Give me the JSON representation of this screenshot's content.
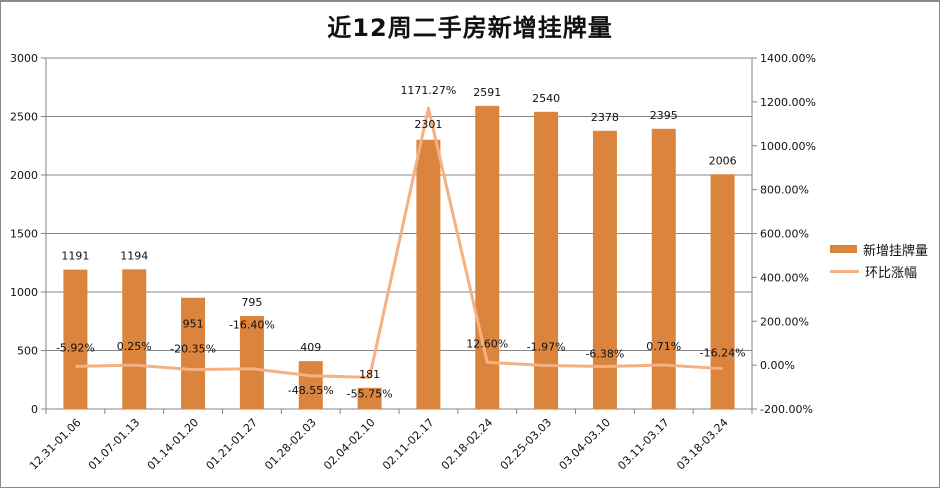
{
  "title": "近12周二手房新增挂牌量",
  "colors": {
    "bar": "#db843d",
    "line": "#f4b183",
    "grid": "#868686",
    "axis": "#868686",
    "text": "#111111"
  },
  "legend": {
    "bar_label": "新增挂牌量",
    "line_label": "环比涨幅"
  },
  "chart_data": {
    "type": "bar+line",
    "title": "近12周二手房新增挂牌量",
    "categories": [
      "12.31-01.06",
      "01.07-01.13",
      "01.14-01.20",
      "01.21-01.27",
      "01.28-02.03",
      "02.04-02.10",
      "02.11-02.17",
      "02.18-02.24",
      "02.25-03.03",
      "03.04-03.10",
      "03.11-03.17",
      "03.18-03.24"
    ],
    "series": [
      {
        "name": "新增挂牌量",
        "type": "bar",
        "axis": "left",
        "values": [
          1191,
          1194,
          951,
          795,
          409,
          181,
          2301,
          2591,
          2540,
          2378,
          2395,
          2006
        ],
        "labels": [
          "1191",
          "1194",
          "951",
          "795",
          "409",
          "181",
          "2301",
          "2591",
          "2540",
          "2378",
          "2395",
          "2006"
        ]
      },
      {
        "name": "环比涨幅",
        "type": "line",
        "axis": "right",
        "values": [
          -5.92,
          0.25,
          -20.35,
          -16.4,
          -48.55,
          -55.75,
          1171.27,
          12.6,
          -1.97,
          -6.38,
          0.71,
          -16.24
        ],
        "labels": [
          "-5.92%",
          "0.25%",
          "-20.35%",
          "-16.40%",
          "-48.55%",
          "-55.75%",
          "1171.27%",
          "12.60%",
          "-1.97%",
          "-6.38%",
          "0.71%",
          "-16.24%"
        ]
      }
    ],
    "y_left": {
      "min": 0,
      "max": 3000,
      "ticks": [
        "0",
        "500",
        "1000",
        "1500",
        "2000",
        "2500",
        "3000"
      ]
    },
    "y_right": {
      "min": -200,
      "max": 1400,
      "ticks": [
        "-200.00%",
        "0.00%",
        "200.00%",
        "400.00%",
        "600.00%",
        "800.00%",
        "1000.00%",
        "1200.00%",
        "1400.00%"
      ]
    },
    "xlabel": "",
    "ylabel": "",
    "grid": true,
    "legend_position": "right"
  }
}
